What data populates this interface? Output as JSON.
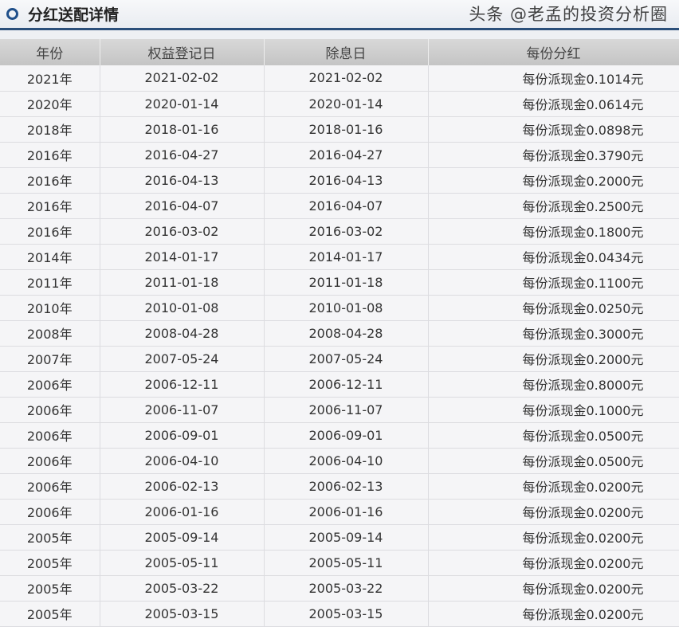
{
  "header": {
    "title": "分红送配详情"
  },
  "columns": [
    "年份",
    "权益登记日",
    "除息日",
    "每份分红"
  ],
  "rows": [
    [
      "2021年",
      "2021-02-02",
      "2021-02-02",
      "每份派现金0.1014元"
    ],
    [
      "2020年",
      "2020-01-14",
      "2020-01-14",
      "每份派现金0.0614元"
    ],
    [
      "2018年",
      "2018-01-16",
      "2018-01-16",
      "每份派现金0.0898元"
    ],
    [
      "2016年",
      "2016-04-27",
      "2016-04-27",
      "每份派现金0.3790元"
    ],
    [
      "2016年",
      "2016-04-13",
      "2016-04-13",
      "每份派现金0.2000元"
    ],
    [
      "2016年",
      "2016-04-07",
      "2016-04-07",
      "每份派现金0.2500元"
    ],
    [
      "2016年",
      "2016-03-02",
      "2016-03-02",
      "每份派现金0.1800元"
    ],
    [
      "2014年",
      "2014-01-17",
      "2014-01-17",
      "每份派现金0.0434元"
    ],
    [
      "2011年",
      "2011-01-18",
      "2011-01-18",
      "每份派现金0.1100元"
    ],
    [
      "2010年",
      "2010-01-08",
      "2010-01-08",
      "每份派现金0.0250元"
    ],
    [
      "2008年",
      "2008-04-28",
      "2008-04-28",
      "每份派现金0.3000元"
    ],
    [
      "2007年",
      "2007-05-24",
      "2007-05-24",
      "每份派现金0.2000元"
    ],
    [
      "2006年",
      "2006-12-11",
      "2006-12-11",
      "每份派现金0.8000元"
    ],
    [
      "2006年",
      "2006-11-07",
      "2006-11-07",
      "每份派现金0.1000元"
    ],
    [
      "2006年",
      "2006-09-01",
      "2006-09-01",
      "每份派现金0.0500元"
    ],
    [
      "2006年",
      "2006-04-10",
      "2006-04-10",
      "每份派现金0.0500元"
    ],
    [
      "2006年",
      "2006-02-13",
      "2006-02-13",
      "每份派现金0.0200元"
    ],
    [
      "2006年",
      "2006-01-16",
      "2006-01-16",
      "每份派现金0.0200元"
    ],
    [
      "2005年",
      "2005-09-14",
      "2005-09-14",
      "每份派现金0.0200元"
    ],
    [
      "2005年",
      "2005-05-11",
      "2005-05-11",
      "每份派现金0.0200元"
    ],
    [
      "2005年",
      "2005-03-22",
      "2005-03-22",
      "每份派现金0.0200元"
    ],
    [
      "2005年",
      "2005-03-15",
      "2005-03-15",
      "每份派现金0.0200元"
    ]
  ],
  "watermark": "头条 @老孟的投资分析圈"
}
